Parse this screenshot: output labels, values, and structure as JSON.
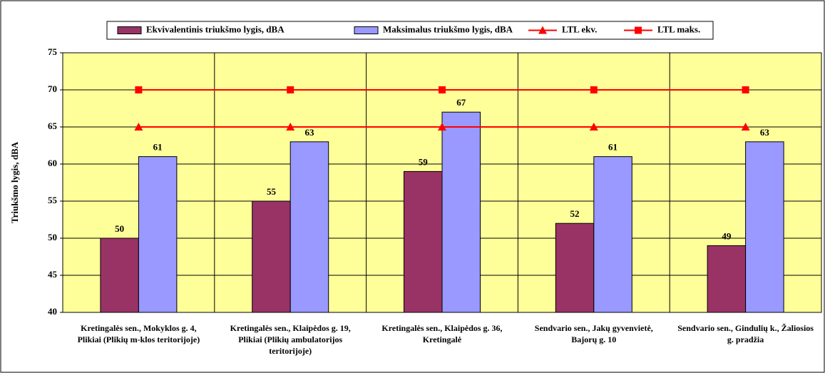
{
  "chart_data": {
    "type": "bar",
    "y_label": "Triukšmo lygis, dBA",
    "categories": [
      "Kretingalės sen., Mokyklos g. 4, Plikiai (Plikių m-klos teritorijoje)",
      "Kretingalės sen., Klaipėdos g. 19, Plikiai (Plikių ambulatorijos teritorijoje)",
      "Kretingalės sen., Klaipėdos g. 36, Kretingalė",
      "Sendvario sen., Jakų gyvenvietė, Bajorų g. 10",
      "Sendvario sen., Gindulių k., Žaliosios g. pradžia"
    ],
    "series": [
      {
        "name": "Ekvivalentinis triukšmo lygis, dBA",
        "type": "bar",
        "color": "#993366",
        "values": [
          50,
          55,
          59,
          52,
          49
        ]
      },
      {
        "name": "Maksimalus triukšmo lygis, dBA",
        "type": "bar",
        "color": "#9999ff",
        "values": [
          61,
          63,
          67,
          61,
          63
        ]
      },
      {
        "name": "LTL ekv.",
        "type": "line",
        "marker": "triangle",
        "color": "#ff0000",
        "values": [
          65,
          65,
          65,
          65,
          65
        ]
      },
      {
        "name": "LTL maks.",
        "type": "line",
        "marker": "square",
        "color": "#ff0000",
        "values": [
          70,
          70,
          70,
          70,
          70
        ]
      }
    ],
    "ylim": [
      40,
      75
    ],
    "yticks": [
      40,
      45,
      50,
      55,
      60,
      65,
      70,
      75
    ],
    "grid": true,
    "legend": "top",
    "plot_background": "#ffff99"
  }
}
